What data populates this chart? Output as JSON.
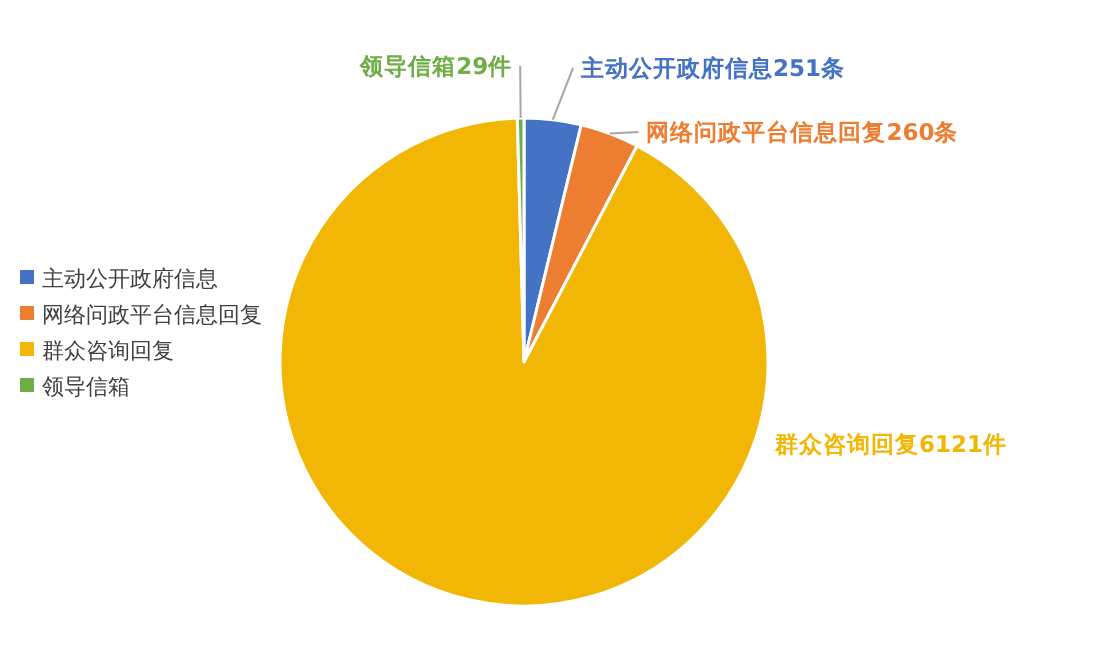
{
  "chart_data": {
    "type": "pie",
    "categories": [
      "主动公开政府信息",
      "网络问政平台信息回复",
      "群众咨询回复",
      "领导信箱"
    ],
    "values": [
      251,
      260,
      6121,
      29
    ],
    "colors": [
      "#4472c4",
      "#ed7d31",
      "#f2b705",
      "#70ad47"
    ],
    "value_labels": [
      "主动公开政府信息251条",
      "网络问政平台信息回复260条",
      "群众咨询回复6121件",
      "领导信箱29件"
    ],
    "legend": "left"
  }
}
